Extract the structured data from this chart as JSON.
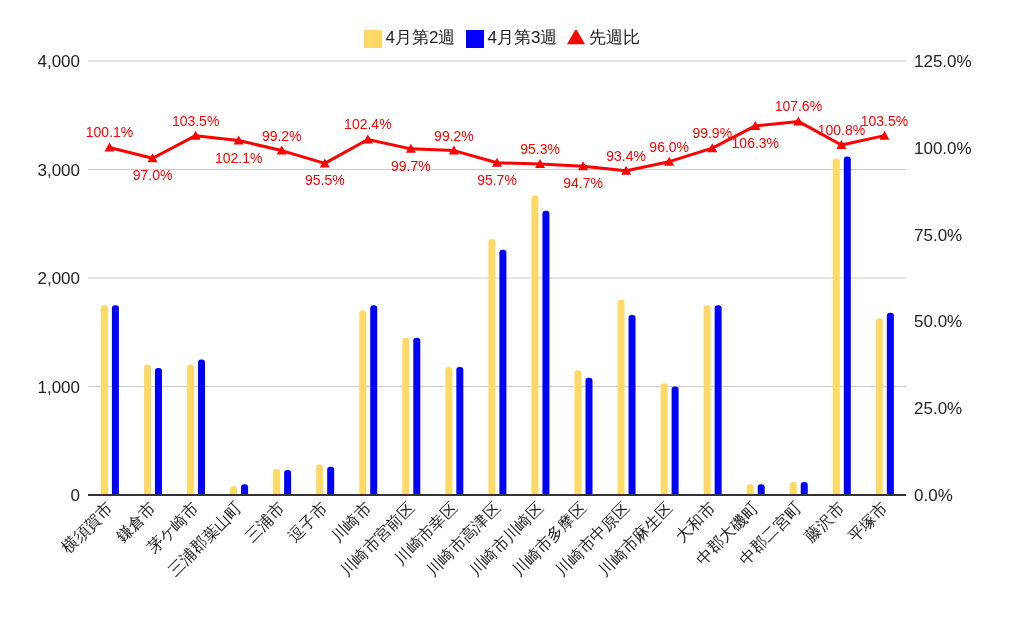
{
  "chart_data": {
    "type": "bar",
    "categories": [
      "横須賀市",
      "鎌倉市",
      "茅ケ崎市",
      "三浦郡葉山町",
      "三浦市",
      "逗子市",
      "川崎市",
      "川崎市宮前区",
      "川崎市幸区",
      "川崎市高津区",
      "川崎市川崎区",
      "川崎市多摩区",
      "川崎市中原区",
      "川崎市麻生区",
      "大和市",
      "中郡大磯町",
      "中郡二宮町",
      "藤沢市",
      "平塚市"
    ],
    "series": [
      {
        "name": "4月第2週",
        "color": "#ffd966",
        "values": [
          1750,
          1200,
          1200,
          80,
          240,
          280,
          1700,
          1450,
          1180,
          2360,
          2760,
          1150,
          1800,
          1030,
          1750,
          100,
          120,
          3100,
          1630
        ]
      },
      {
        "name": "4月第3週",
        "color": "#0000ff",
        "values": [
          1750,
          1170,
          1250,
          100,
          230,
          260,
          1750,
          1450,
          1180,
          2260,
          2620,
          1080,
          1660,
          1000,
          1750,
          100,
          120,
          3120,
          1680
        ]
      },
      {
        "name": "先週比",
        "type": "line",
        "axis": "y2",
        "color": "#ff0000",
        "marker": "triangle",
        "values": [
          100.1,
          97.0,
          103.5,
          102.1,
          99.2,
          95.5,
          102.4,
          99.7,
          99.2,
          95.7,
          95.3,
          94.7,
          93.4,
          96.0,
          99.9,
          106.3,
          107.6,
          100.8,
          103.5
        ],
        "value_labels": [
          "100.1%",
          "97.0%",
          "103.5%",
          "102.1%",
          "99.2%",
          "95.5%",
          "102.4%",
          "99.7%",
          "99.2%",
          "95.7%",
          "95.3%",
          "94.7%",
          "93.4%",
          "96.0%",
          "99.9%",
          "106.3%",
          "107.6%",
          "100.8%",
          "103.5%"
        ]
      }
    ],
    "ylim": [
      0,
      4000
    ],
    "yticks": [
      0,
      {
        "value": 1000,
        "label": "1,000"
      },
      {
        "value": 2000,
        "label": "2,000"
      },
      {
        "value": 3000,
        "label": "3,000"
      },
      {
        "value": 4000,
        "label": "4,000"
      }
    ],
    "y2lim": [
      0,
      125
    ],
    "y2ticks": [
      {
        "value": 0,
        "label": "0.0%"
      },
      {
        "value": 25,
        "label": "25.0%"
      },
      {
        "value": 50,
        "label": "50.0%"
      },
      {
        "value": 75,
        "label": "75.0%"
      },
      {
        "value": 100,
        "label": "100.0%"
      },
      {
        "value": 125,
        "label": "125.0%"
      }
    ],
    "grid": "y",
    "legend": "top"
  }
}
